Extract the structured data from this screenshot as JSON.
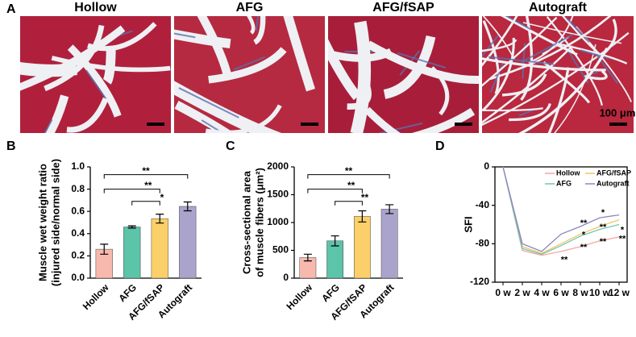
{
  "figure": {
    "panel_labels": [
      "A",
      "B",
      "C",
      "D"
    ],
    "images": [
      {
        "title": "Hollow"
      },
      {
        "title": "AFG"
      },
      {
        "title": "AFG/fSAP"
      },
      {
        "title": "Autograft"
      }
    ],
    "scale_bar": "100 μm"
  },
  "chart_data": [
    {
      "type": "bar",
      "ylabel": [
        "Muscle wet weight ratio",
        "(injured side/normal side)"
      ],
      "categories": [
        "Hollow",
        "AFG",
        "AFG/fSAP",
        "Autograft"
      ],
      "values": [
        0.26,
        0.46,
        0.535,
        0.645
      ],
      "errors": [
        0.045,
        0.01,
        0.04,
        0.04
      ],
      "colors": [
        "#f7b9ae",
        "#5cc4a8",
        "#fbd06a",
        "#aaa4cc"
      ],
      "ylim": [
        0,
        1.0
      ],
      "yticks": [
        {
          "value": 0,
          "label": "0.0"
        },
        {
          "value": 0.2,
          "label": "0.2"
        },
        {
          "value": 0.4,
          "label": "0.4"
        },
        {
          "value": 0.6,
          "label": "0.6"
        },
        {
          "value": 0.8,
          "label": "0.8"
        },
        {
          "value": 1.0,
          "label": "1.0"
        }
      ],
      "annotations": [
        "**",
        "**",
        "*"
      ]
    },
    {
      "type": "bar",
      "ylabel": [
        "Cross-sectional area",
        "of muscle fibers (μm²)"
      ],
      "categories": [
        "Hollow",
        "AFG",
        "AFG/fSAP",
        "Autograft"
      ],
      "values": [
        370,
        670,
        1110,
        1240
      ],
      "errors": [
        60,
        90,
        100,
        80
      ],
      "colors": [
        "#f7b9ae",
        "#5cc4a8",
        "#fbd06a",
        "#aaa4cc"
      ],
      "ylim": [
        0,
        2000
      ],
      "yticks": [
        0,
        500,
        1000,
        1500,
        2000
      ],
      "annotations": [
        "**",
        "**",
        "**"
      ]
    },
    {
      "type": "line",
      "ylabel": [
        "SFI"
      ],
      "categories": [
        "0 w",
        "2 w",
        "4 w",
        "6 w",
        "8 w",
        "10 w",
        "12 w"
      ],
      "series": [
        {
          "name": "Hollow",
          "color": "#f4a6a0",
          "values": [
            0,
            -87,
            -92,
            -88,
            -83,
            -77,
            -73
          ]
        },
        {
          "name": "AFG/fSAP",
          "color": "#f6c560",
          "values": [
            0,
            -83,
            -90,
            -80,
            -70,
            -62,
            -55
          ]
        },
        {
          "name": "AFG",
          "color": "#6cc7b0",
          "values": [
            0,
            -85,
            -91,
            -82,
            -72,
            -65,
            -60
          ]
        },
        {
          "name": "Autograft",
          "color": "#8c86c0",
          "values": [
            0,
            -80,
            -88,
            -70,
            -62,
            -53,
            -50
          ]
        }
      ],
      "ylim": [
        -120,
        0
      ],
      "yticks": [
        -120,
        -80,
        -40,
        0
      ],
      "annotations": [
        "**",
        "**",
        "*",
        "**",
        "*",
        "**",
        "**",
        "*",
        "**"
      ]
    }
  ]
}
